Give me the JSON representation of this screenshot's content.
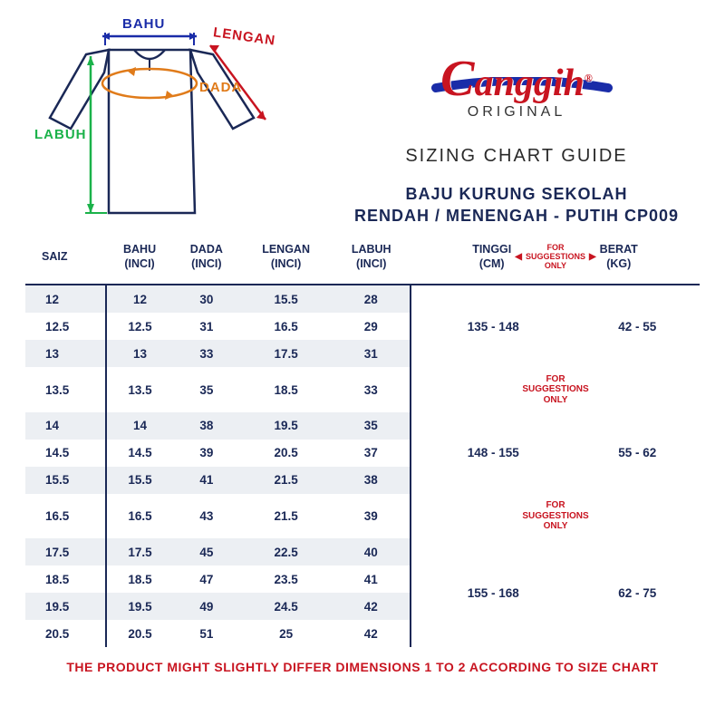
{
  "brand": {
    "cursive": "anggih",
    "initial": "C",
    "sub": "ORIGINAL",
    "reg": "®"
  },
  "chart_guide": "SIZING CHART GUIDE",
  "product_title_l1": "BAJU KURUNG SEKOLAH",
  "product_title_l2": "RENDAH / MENENGAH - PUTIH CP009",
  "diagram_labels": {
    "bahu": "BAHU",
    "lengan": "LENGAN",
    "dada": "DADA",
    "labuh": "LABUH"
  },
  "headers": {
    "saiz": "SAIZ",
    "bahu": "BAHU",
    "bahu_unit": "(INCI)",
    "dada": "DADA",
    "dada_unit": "(INCI)",
    "lengan": "LENGAN",
    "lengan_unit": "(INCI)",
    "labuh": "LABUH",
    "labuh_unit": "(INCI)",
    "tinggi": "TINGGI",
    "tinggi_unit": "(CM)",
    "berat": "BERAT",
    "berat_unit": "(KG)",
    "for_sugg": "FOR",
    "for_sugg2": "SUGGESTIONS",
    "for_sugg3": "ONLY"
  },
  "rows": [
    {
      "saiz": "12",
      "bahu": "12",
      "dada": "30",
      "lengan": "15.5",
      "labuh": "28"
    },
    {
      "saiz": "12.5",
      "bahu": "12.5",
      "dada": "31",
      "lengan": "16.5",
      "labuh": "29"
    },
    {
      "saiz": "13",
      "bahu": "13",
      "dada": "33",
      "lengan": "17.5",
      "labuh": "31"
    },
    {
      "saiz": "13.5",
      "bahu": "13.5",
      "dada": "35",
      "lengan": "18.5",
      "labuh": "33"
    },
    {
      "saiz": "14",
      "bahu": "14",
      "dada": "38",
      "lengan": "19.5",
      "labuh": "35"
    },
    {
      "saiz": "14.5",
      "bahu": "14.5",
      "dada": "39",
      "lengan": "20.5",
      "labuh": "37"
    },
    {
      "saiz": "15.5",
      "bahu": "15.5",
      "dada": "41",
      "lengan": "21.5",
      "labuh": "38"
    },
    {
      "saiz": "16.5",
      "bahu": "16.5",
      "dada": "43",
      "lengan": "21.5",
      "labuh": "39"
    },
    {
      "saiz": "17.5",
      "bahu": "17.5",
      "dada": "45",
      "lengan": "22.5",
      "labuh": "40"
    },
    {
      "saiz": "18.5",
      "bahu": "18.5",
      "dada": "47",
      "lengan": "23.5",
      "labuh": "41"
    },
    {
      "saiz": "19.5",
      "bahu": "19.5",
      "dada": "49",
      "lengan": "24.5",
      "labuh": "42"
    },
    {
      "saiz": "20.5",
      "bahu": "20.5",
      "dada": "51",
      "lengan": "25",
      "labuh": "42"
    }
  ],
  "right_groups": [
    {
      "span": 3,
      "tinggi": "135 - 148",
      "berat": "42 - 55",
      "type": "range"
    },
    {
      "span": 1,
      "type": "note"
    },
    {
      "span": 3,
      "tinggi": "148 - 155",
      "berat": "55 - 62",
      "type": "range"
    },
    {
      "span": 1,
      "type": "note"
    },
    {
      "span": 4,
      "tinggi": "155 - 168",
      "berat": "62 - 75",
      "type": "range"
    }
  ],
  "note_text_l1": "FOR",
  "note_text_l2": "SUGGESTIONS",
  "note_text_l3": "ONLY",
  "footer": "THE PRODUCT MIGHT SLIGHTLY DIFFER DIMENSIONS 1 TO 2 ACCORDING TO SIZE CHART",
  "colors": {
    "navy": "#1a2856",
    "red": "#c81420",
    "green": "#1bb24a",
    "orange": "#e07b1a",
    "blue": "#1a2ca8",
    "row_alt": "#eceff3",
    "bg": "#ffffff"
  }
}
